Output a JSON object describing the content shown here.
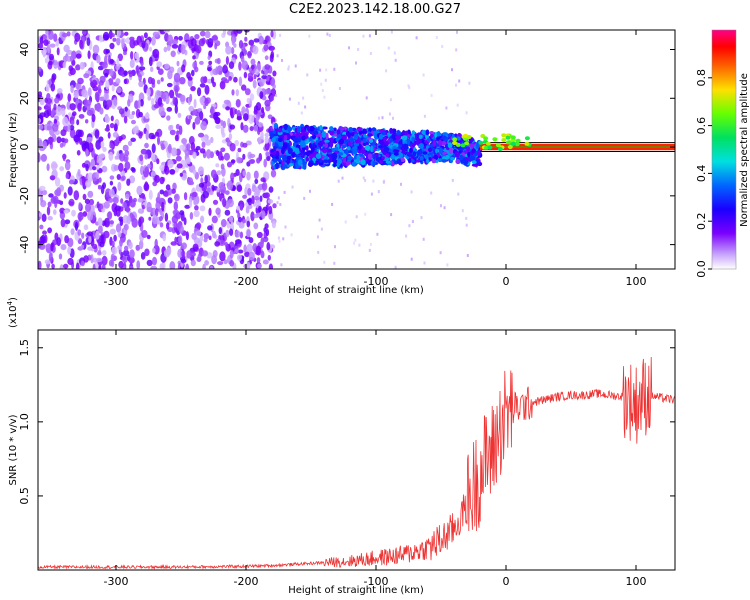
{
  "title": "C2E2.2023.142.18.00.G27",
  "colors": {
    "signal_line": "#ee3333",
    "axis": "#000000",
    "center_line": "#000000"
  },
  "chart_data": [
    {
      "type": "heatmap",
      "title": "C2E2.2023.142.18.00.G27",
      "xlabel": "Height of straight line (km)",
      "ylabel": "Frequency (Hz)",
      "xlim": [
        -360,
        130
      ],
      "ylim": [
        -50,
        48
      ],
      "xticks": [
        -300,
        -200,
        -100,
        0,
        100
      ],
      "xtick_labels": [
        "-300",
        "-200",
        "-100",
        "0",
        "100"
      ],
      "yticks": [
        40,
        20,
        0,
        -20,
        -40
      ],
      "ytick_labels": [
        "40",
        "20",
        "0",
        "-20",
        "-40"
      ],
      "colorbar": {
        "label": "Normalized spectral amplitude",
        "range": [
          0,
          1
        ],
        "ticks": [
          0.0,
          0.2,
          0.4,
          0.6,
          0.8
        ],
        "tick_labels": [
          "0.0",
          "0.2",
          "0.4",
          "0.6",
          "0.8"
        ],
        "colormap": "rainbow (white-purple-blue-cyan-green-yellow-red-magenta)"
      },
      "regions": [
        {
          "x_range": [
            -360,
            -178
          ],
          "description": "broadband noise, amplitude ~0.1-0.2"
        },
        {
          "x_range": [
            -178,
            -20
          ],
          "freq_center": 0,
          "freq_halfwidth": 10,
          "description": "signal band, amplitude ~0.2-0.4"
        },
        {
          "x_range": [
            -20,
            130
          ],
          "freq_center": 0,
          "freq_halfwidth": 1.5,
          "description": "narrow line, amplitude ~0.9-1.0"
        }
      ]
    },
    {
      "type": "line",
      "xlabel": "Height of straight line (km)",
      "ylabel": "SNR (10 * v/v)",
      "yscale_label": "(x10",
      "yscale_exponent": "4",
      "yscale_suffix": ")",
      "xlim": [
        -360,
        130
      ],
      "ylim": [
        0,
        1.62
      ],
      "xticks": [
        -300,
        -200,
        -100,
        0,
        100
      ],
      "xtick_labels": [
        "-300",
        "-200",
        "-100",
        "0",
        "100"
      ],
      "yticks": [
        0.5,
        1.0,
        1.5
      ],
      "ytick_labels": [
        "0.5",
        "1.0",
        "1.5"
      ],
      "series": [
        {
          "x": [
            -360,
            -300,
            -250,
            -200,
            -180,
            -160,
            -140,
            -120,
            -100,
            -80,
            -60,
            -50,
            -40,
            -35,
            -30,
            -25,
            -20,
            -15,
            -10,
            -5,
            0,
            5,
            10,
            20,
            30,
            40,
            50,
            60,
            70,
            80,
            90,
            95,
            100,
            103,
            106,
            110,
            115,
            120,
            130
          ],
          "y": [
            0.02,
            0.02,
            0.02,
            0.025,
            0.03,
            0.04,
            0.05,
            0.06,
            0.08,
            0.1,
            0.15,
            0.2,
            0.28,
            0.35,
            0.45,
            0.55,
            0.65,
            0.75,
            0.8,
            0.95,
            1.05,
            1.08,
            1.1,
            1.13,
            1.15,
            1.17,
            1.18,
            1.18,
            1.19,
            1.18,
            1.17,
            1.15,
            1.12,
            1.15,
            1.18,
            1.18,
            1.17,
            1.16,
            1.15
          ]
        }
      ]
    }
  ]
}
